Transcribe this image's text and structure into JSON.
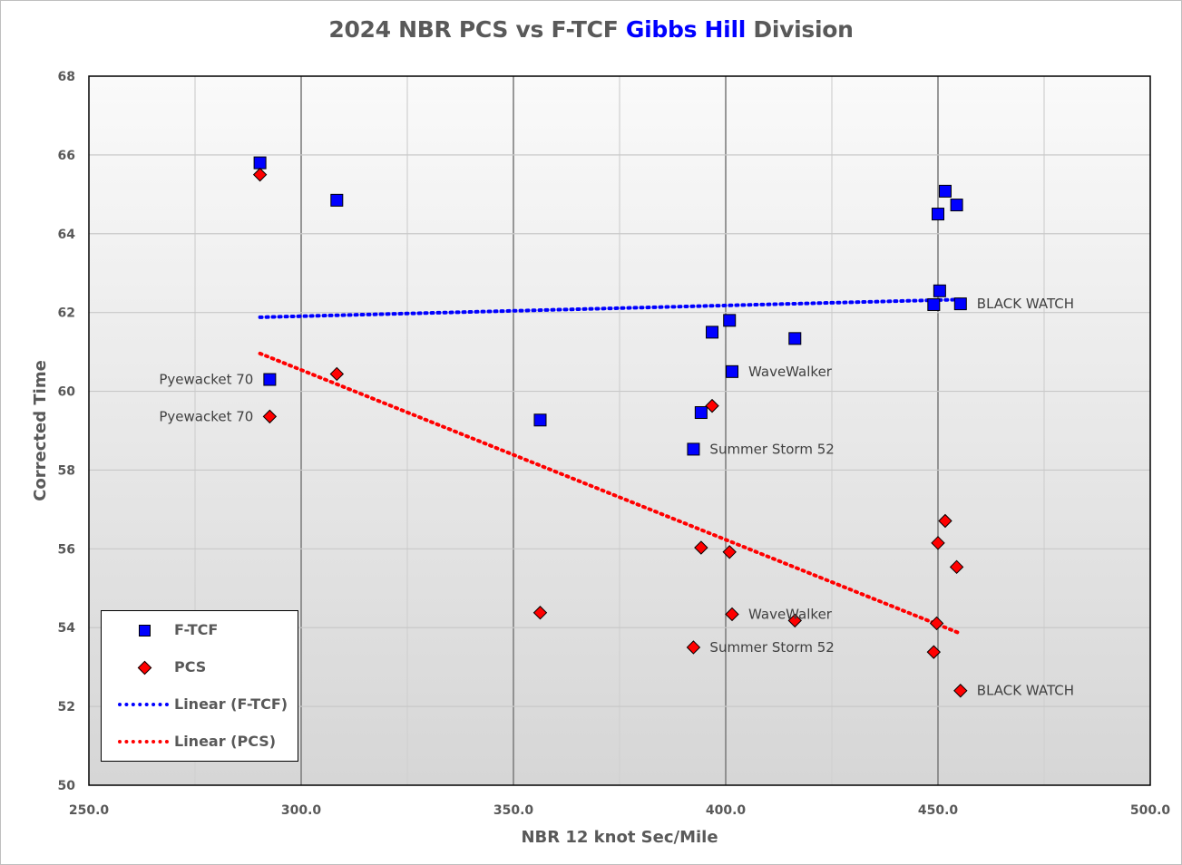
{
  "title": {
    "pre": "2024 NBR PCS vs F-TCF ",
    "highlight": "Gibbs Hill",
    "post": " Division",
    "highlight_color": "#0000ff"
  },
  "chart_data": {
    "type": "scatter",
    "title": "2024 NBR PCS vs F-TCF Gibbs Hill Division",
    "xlabel": "NBR 12 knot Sec/Mile",
    "ylabel": "Corrected Time",
    "xlim": [
      250,
      500
    ],
    "ylim": [
      50,
      68
    ],
    "x_ticks": [
      "250.0",
      "300.0",
      "350.0",
      "400.0",
      "450.0",
      "500.0"
    ],
    "y_ticks": [
      "50",
      "52",
      "54",
      "56",
      "58",
      "60",
      "62",
      "64",
      "66",
      "68"
    ],
    "grid": true,
    "legend_position": "bottom-left",
    "series": [
      {
        "name": "F-TCF",
        "marker": "square",
        "color": "#0000ff",
        "points": [
          {
            "x": 290.3,
            "y": 65.8
          },
          {
            "x": 308.4,
            "y": 64.85
          },
          {
            "x": 292.6,
            "y": 60.3,
            "label": "Pyewacket 70",
            "label_side": "left"
          },
          {
            "x": 356.3,
            "y": 59.27
          },
          {
            "x": 392.4,
            "y": 58.53,
            "label": "Summer Storm 52",
            "label_side": "right"
          },
          {
            "x": 394.2,
            "y": 59.46
          },
          {
            "x": 396.8,
            "y": 61.5
          },
          {
            "x": 400.9,
            "y": 61.8
          },
          {
            "x": 401.5,
            "y": 60.5,
            "label": "WaveWalker",
            "label_side": "right"
          },
          {
            "x": 416.3,
            "y": 61.34
          },
          {
            "x": 449.0,
            "y": 62.2
          },
          {
            "x": 450.0,
            "y": 64.5
          },
          {
            "x": 450.4,
            "y": 62.55
          },
          {
            "x": 451.7,
            "y": 65.08
          },
          {
            "x": 454.4,
            "y": 64.73
          },
          {
            "x": 455.3,
            "y": 62.22,
            "label": "BLACK WATCH",
            "label_side": "right"
          }
        ]
      },
      {
        "name": "PCS",
        "marker": "diamond",
        "color": "#ff0000",
        "points": [
          {
            "x": 290.3,
            "y": 65.5
          },
          {
            "x": 308.4,
            "y": 60.44
          },
          {
            "x": 292.6,
            "y": 59.36,
            "label": "Pyewacket 70",
            "label_side": "left"
          },
          {
            "x": 356.3,
            "y": 54.38
          },
          {
            "x": 392.4,
            "y": 53.5,
            "label": "Summer Storm 52",
            "label_side": "right"
          },
          {
            "x": 394.2,
            "y": 56.03
          },
          {
            "x": 396.8,
            "y": 59.63
          },
          {
            "x": 400.9,
            "y": 55.92
          },
          {
            "x": 401.5,
            "y": 54.34,
            "label": "WaveWalker",
            "label_side": "right"
          },
          {
            "x": 416.3,
            "y": 54.18
          },
          {
            "x": 449.0,
            "y": 53.38
          },
          {
            "x": 450.0,
            "y": 56.15
          },
          {
            "x": 449.7,
            "y": 54.11
          },
          {
            "x": 451.7,
            "y": 56.71
          },
          {
            "x": 454.4,
            "y": 55.54
          },
          {
            "x": 455.3,
            "y": 52.4,
            "label": "BLACK WATCH",
            "label_side": "right"
          }
        ]
      },
      {
        "name": "Linear (F-TCF)",
        "type": "trendline",
        "style": "dotted",
        "color": "#0000ff",
        "x": [
          290.3,
          455.3
        ],
        "y": [
          61.88,
          62.33
        ]
      },
      {
        "name": "Linear (PCS)",
        "type": "trendline",
        "style": "dotted",
        "color": "#ff0000",
        "x": [
          290.3,
          455.3
        ],
        "y": [
          60.96,
          53.85
        ]
      }
    ]
  },
  "legend": {
    "items": [
      {
        "label": "F-TCF",
        "symbol": "square",
        "color": "#0000ff"
      },
      {
        "label": "PCS",
        "symbol": "diamond",
        "color": "#ff0000"
      },
      {
        "label": "Linear (F-TCF)",
        "symbol": "dotted-line",
        "color": "#0000ff"
      },
      {
        "label": "Linear (PCS)",
        "symbol": "dotted-line",
        "color": "#ff0000"
      }
    ]
  }
}
